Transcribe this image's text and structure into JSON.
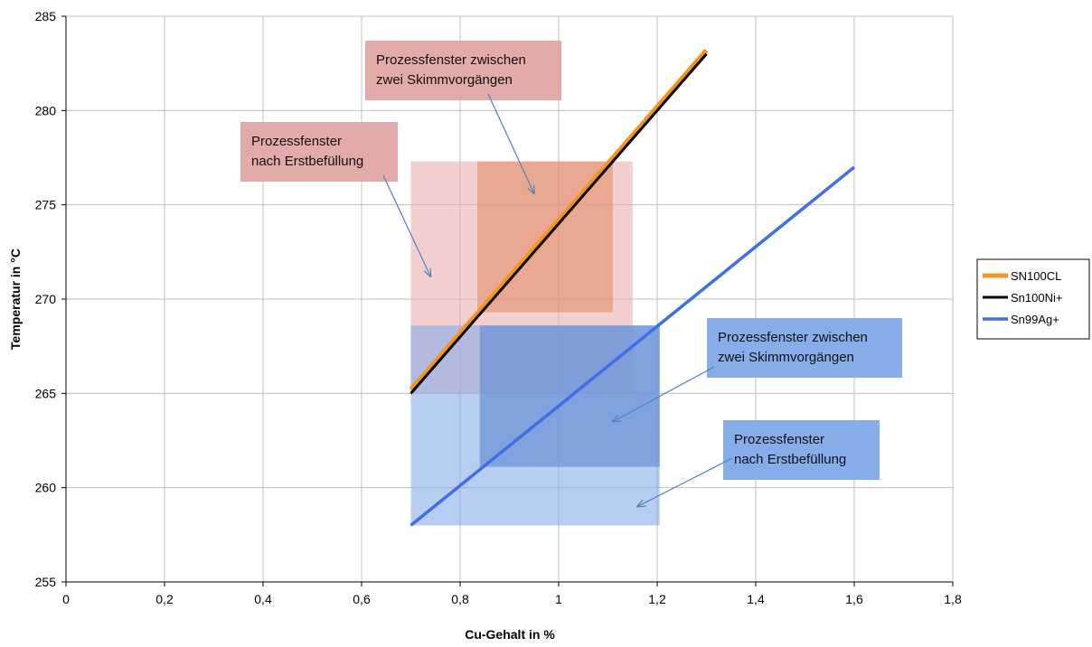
{
  "chart_data": {
    "type": "line",
    "xlabel": "Cu-Gehalt in %",
    "ylabel": "Temperatur in °C",
    "xlim": [
      0,
      1.8
    ],
    "ylim": [
      255,
      285
    ],
    "x_ticks": [
      "0",
      "0,2",
      "0,4",
      "0,6",
      "0,8",
      "1",
      "1,2",
      "1,4",
      "1,6",
      "1,8"
    ],
    "y_ticks": [
      "255",
      "260",
      "265",
      "270",
      "275",
      "280",
      "285"
    ],
    "grid": true,
    "legend_position": "right",
    "series": [
      {
        "name": "SN100CL",
        "color": "#f7941d",
        "x": [
          0.7,
          1.3
        ],
        "y": [
          265.2,
          283.2
        ]
      },
      {
        "name": "Sn100Ni+",
        "color": "#000000",
        "x": [
          0.7,
          1.3
        ],
        "y": [
          265.0,
          283.0
        ]
      },
      {
        "name": "Sn99Ag+",
        "color": "#3f6fe6",
        "x": [
          0.7,
          1.6
        ],
        "y": [
          258.0,
          277.0
        ]
      }
    ],
    "regions": [
      {
        "x": [
          0.7,
          1.15
        ],
        "y": [
          265,
          277.3
        ],
        "color": "#e8a9a9",
        "opacity": 0.55
      },
      {
        "x": [
          0.835,
          1.11
        ],
        "y": [
          269.3,
          277.3
        ],
        "color": "#e58d6a",
        "opacity": 0.6
      },
      {
        "x": [
          0.7,
          1.205
        ],
        "y": [
          258,
          268.6
        ],
        "color": "#87acea",
        "opacity": 0.6
      },
      {
        "x": [
          0.84,
          1.205
        ],
        "y": [
          261.1,
          268.6
        ],
        "color": "#6a92d4",
        "opacity": 0.7
      }
    ],
    "annotations": [
      {
        "lines": [
          "Prozessfenster zwischen",
          "zwei Skimmvorgängen"
        ],
        "box_color": "#e3aaaa",
        "arrow_to": [
          0.95,
          275.6
        ]
      },
      {
        "lines": [
          "Prozessfenster",
          "nach Erstbefüllung"
        ],
        "box_color": "#e3aaaa",
        "arrow_to": [
          0.74,
          271.2
        ]
      },
      {
        "lines": [
          "Prozessfenster zwischen",
          "zwei Skimmvorgängen"
        ],
        "box_color": "#87acea",
        "arrow_to": [
          1.11,
          263.5
        ]
      },
      {
        "lines": [
          "Prozessfenster",
          "nach Erstbefüllung"
        ],
        "box_color": "#87acea",
        "arrow_to": [
          1.16,
          259.0
        ]
      }
    ]
  }
}
